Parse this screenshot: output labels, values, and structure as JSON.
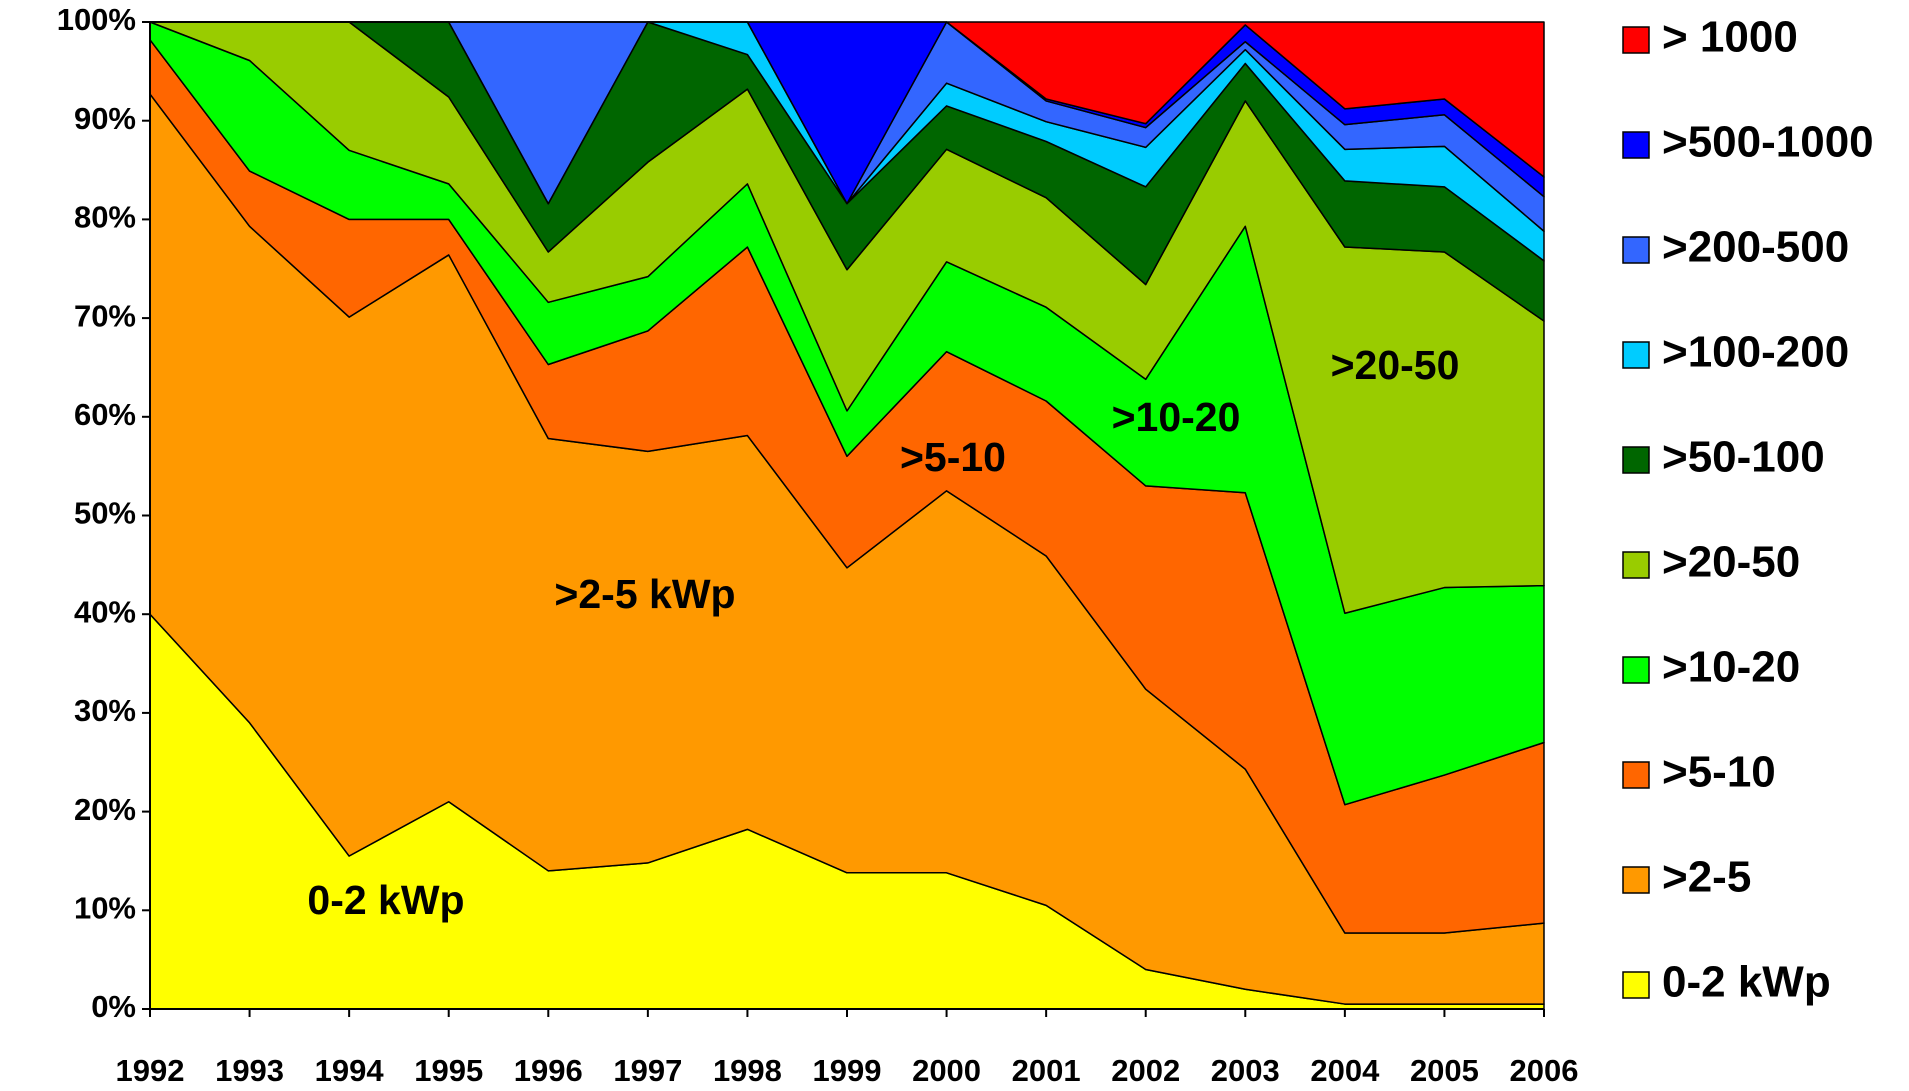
{
  "chart_data": {
    "type": "stacked_area",
    "categories": [
      "1992",
      "1993",
      "1994",
      "1995",
      "1996",
      "1997",
      "1998",
      "1999",
      "2000",
      "2001",
      "2002",
      "2003",
      "2004",
      "2005",
      "2006"
    ],
    "series": [
      {
        "name": "0-2 kWp",
        "color": "#ffff00",
        "values": [
          40,
          29,
          15.5,
          21,
          14,
          14.8,
          18.2,
          13.8,
          13.8,
          10.5,
          4,
          2,
          0.5,
          0.5,
          0.5
        ]
      },
      {
        "name": ">2-5",
        "color": "#ff9900",
        "values": [
          52.7,
          50.3,
          54.6,
          55.4,
          43.8,
          41.7,
          39.9,
          30.9,
          38.7,
          35.4,
          28.4,
          22.3,
          7.2,
          7.2,
          8.2
        ]
      },
      {
        "name": ">5-10",
        "color": "#ff6600",
        "values": [
          5.5,
          5.6,
          9.9,
          3.6,
          7.5,
          12.2,
          19.1,
          11.3,
          14.1,
          15.7,
          20.6,
          28,
          13,
          16,
          18.3
        ]
      },
      {
        "name": ">10-20",
        "color": "#00ff00",
        "values": [
          1.8,
          11.2,
          7,
          3.6,
          6.3,
          5.5,
          6.4,
          4.6,
          9.1,
          9.5,
          10.8,
          27,
          19.4,
          19,
          15.9
        ]
      },
      {
        "name": ">20-50",
        "color": "#99cc00",
        "values": [
          0,
          3.9,
          13,
          8.8,
          5.1,
          11.6,
          9.6,
          14.3,
          11.4,
          11.1,
          9.6,
          12.7,
          37.1,
          34,
          26.8
        ]
      },
      {
        "name": ">50-100",
        "color": "#006600",
        "values": [
          0,
          0,
          0,
          7.6,
          4.9,
          14.2,
          3.5,
          6.7,
          4.4,
          5.7,
          9.9,
          3.8,
          6.7,
          6.6,
          6.1
        ]
      },
      {
        "name": ">100-200",
        "color": "#00ccff",
        "values": [
          0,
          0,
          0,
          0,
          0,
          0,
          3.3,
          0,
          2.3,
          2,
          4,
          1.4,
          3.2,
          4.1,
          3
        ]
      },
      {
        "name": ">200-500",
        "color": "#3366ff",
        "values": [
          0,
          0,
          0,
          0,
          18.4,
          0,
          0,
          0,
          6.2,
          2.1,
          2,
          0.8,
          2.5,
          3.2,
          3.5
        ]
      },
      {
        "name": ">500-1000",
        "color": "#0000ff",
        "values": [
          0,
          0,
          0,
          0,
          0,
          0,
          0,
          18.4,
          0,
          0.2,
          0.4,
          1.7,
          1.6,
          1.6,
          2
        ]
      },
      {
        "name": "> 1000",
        "color": "#ff0000",
        "values": [
          0,
          0,
          0,
          0,
          0,
          0,
          0,
          0,
          0,
          7.8,
          10.3,
          0.3,
          8.8,
          7.8,
          15.7
        ]
      }
    ],
    "ylim": [
      0,
      100
    ],
    "yticks": [
      {
        "value": 0,
        "label": "0%"
      },
      {
        "value": 10,
        "label": "10%"
      },
      {
        "value": 20,
        "label": "20%"
      },
      {
        "value": 30,
        "label": "30%"
      },
      {
        "value": 40,
        "label": "40%"
      },
      {
        "value": 50,
        "label": "50%"
      },
      {
        "value": 60,
        "label": "60%"
      },
      {
        "value": 70,
        "label": "70%"
      },
      {
        "value": 80,
        "label": "80%"
      },
      {
        "value": 90,
        "label": "90%"
      },
      {
        "value": 100,
        "label": "100%"
      }
    ],
    "annotations": [
      "0-2 kWp",
      ">2-5 kWp",
      ">5-10",
      ">10-20",
      ">20-50"
    ],
    "legend": "right"
  }
}
